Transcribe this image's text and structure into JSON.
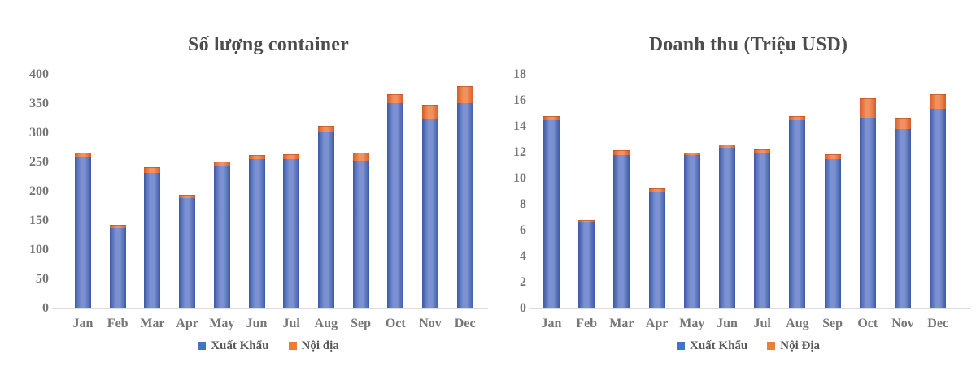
{
  "colors": {
    "bar_blue": "#4472C4",
    "bar_blue_light": "#7b91d2",
    "bar_blue_dark": "#3d59a5",
    "bar_orange": "#ED7D31",
    "bar_orange_light": "#f0915f",
    "bar_orange_dark": "#d85c25",
    "title_text": "#4d4d4d",
    "axis_text": "#767676",
    "legend_text": "#595959",
    "axis_line": "#dcdcdc"
  },
  "chart_data": [
    {
      "type": "bar",
      "stacked": true,
      "title": "Số lượng container",
      "categories": [
        "Jan",
        "Feb",
        "Mar",
        "Apr",
        "May",
        "Jun",
        "Jul",
        "Aug",
        "Sep",
        "Oct",
        "Nov",
        "Dec"
      ],
      "series": [
        {
          "name": "Xuất Khẩu",
          "color": "#4472C4",
          "values": [
            260,
            138,
            232,
            189,
            244,
            256,
            256,
            303,
            253,
            351,
            323,
            352
          ]
        },
        {
          "name": "Nội địa",
          "color": "#ED7D31",
          "values": [
            7,
            5,
            10,
            6,
            7,
            6,
            8,
            10,
            13,
            16,
            25,
            29
          ]
        }
      ],
      "ylim": [
        0,
        400
      ],
      "ytick_step": 50,
      "ylabel": "",
      "xlabel": "",
      "grid": false,
      "legend_position": "bottom"
    },
    {
      "type": "bar",
      "stacked": true,
      "title": "Doanh thu (Triệu USD)",
      "categories": [
        "Jan",
        "Feb",
        "Mar",
        "Apr",
        "May",
        "Jun",
        "Jul",
        "Aug",
        "Sep",
        "Oct",
        "Nov",
        "Dec"
      ],
      "series": [
        {
          "name": "Xuất Khẩu",
          "color": "#4472C4",
          "values": [
            14.5,
            6.6,
            11.8,
            9.0,
            11.8,
            12.4,
            12.0,
            14.5,
            11.5,
            14.7,
            13.8,
            15.4
          ]
        },
        {
          "name": "Nội Địa",
          "color": "#ED7D31",
          "values": [
            0.3,
            0.2,
            0.4,
            0.25,
            0.2,
            0.2,
            0.25,
            0.3,
            0.4,
            1.5,
            0.9,
            1.1
          ]
        }
      ],
      "ylim": [
        0,
        18
      ],
      "ytick_step": 2,
      "ylabel": "",
      "xlabel": "",
      "grid": false,
      "legend_position": "bottom"
    }
  ]
}
